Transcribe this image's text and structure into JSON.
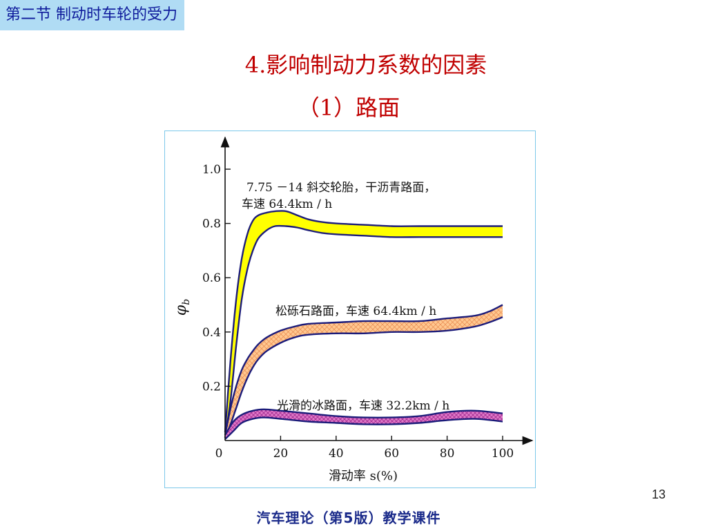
{
  "slide": {
    "section_label": "第二节  制动时车轮的受力",
    "title": "4.影响制动力系数的因素",
    "subtitle": "（1）路面",
    "page_number": "13",
    "footer": "汽车理论（第5版）教学课件"
  },
  "colors": {
    "section_tag_bg": "#b0dcf4",
    "section_tag_text": "#0e1a9b",
    "title": "#c00000",
    "band_dry_asphalt": "#ffff00",
    "band_gravel": "#ffc890",
    "band_ice": "#e07ac8",
    "band_outline": "#1c1c7a",
    "figure_border": "#7cc8ea"
  },
  "chart_data": {
    "type": "area",
    "xlabel": "滑动率 s(%)",
    "ylabel": "φb",
    "xlim": [
      0,
      100
    ],
    "ylim": [
      0,
      1.0
    ],
    "x_ticks": [
      0,
      20,
      40,
      60,
      80,
      100
    ],
    "y_ticks": [
      0.2,
      0.4,
      0.6,
      0.8,
      1.0
    ],
    "grid": false,
    "legend": "none",
    "series": [
      {
        "annotation": [
          "7.75 －14 斜交轮胎，干沥青路面，",
          "车速 64.4km / h"
        ],
        "fill": "solid",
        "x": [
          0,
          2,
          4,
          6,
          8,
          10,
          12,
          15,
          18,
          22,
          26,
          30,
          35,
          40,
          50,
          60,
          70,
          80,
          90,
          100
        ],
        "upper": [
          0.03,
          0.3,
          0.52,
          0.67,
          0.76,
          0.81,
          0.83,
          0.84,
          0.845,
          0.845,
          0.83,
          0.815,
          0.805,
          0.8,
          0.795,
          0.79,
          0.79,
          0.79,
          0.79,
          0.79
        ],
        "lower": [
          0.01,
          0.15,
          0.35,
          0.52,
          0.63,
          0.7,
          0.745,
          0.775,
          0.79,
          0.79,
          0.785,
          0.775,
          0.765,
          0.76,
          0.755,
          0.75,
          0.75,
          0.75,
          0.75,
          0.75
        ]
      },
      {
        "annotation": [
          "松砾石路面，车速 64.4km / h"
        ],
        "fill": "crosshatch",
        "x": [
          0,
          2,
          4,
          6,
          8,
          10,
          12,
          15,
          20,
          25,
          30,
          40,
          50,
          60,
          70,
          80,
          90,
          95,
          100
        ],
        "upper": [
          0.02,
          0.12,
          0.2,
          0.26,
          0.3,
          0.33,
          0.355,
          0.38,
          0.405,
          0.42,
          0.43,
          0.435,
          0.44,
          0.44,
          0.44,
          0.45,
          0.46,
          0.475,
          0.5
        ],
        "lower": [
          0.01,
          0.06,
          0.12,
          0.18,
          0.23,
          0.27,
          0.3,
          0.33,
          0.36,
          0.38,
          0.39,
          0.395,
          0.395,
          0.4,
          0.4,
          0.405,
          0.42,
          0.435,
          0.455
        ]
      },
      {
        "annotation": [
          "光滑的冰路面，车速 32.2km / h"
        ],
        "fill": "crosshatch",
        "x": [
          0,
          3,
          6,
          10,
          14,
          20,
          30,
          40,
          50,
          60,
          70,
          80,
          90,
          100
        ],
        "upper": [
          0.02,
          0.07,
          0.095,
          0.11,
          0.115,
          0.11,
          0.1,
          0.09,
          0.085,
          0.085,
          0.09,
          0.105,
          0.11,
          0.1
        ],
        "lower": [
          0.005,
          0.035,
          0.065,
          0.08,
          0.085,
          0.08,
          0.07,
          0.065,
          0.06,
          0.06,
          0.065,
          0.075,
          0.08,
          0.07
        ]
      }
    ]
  }
}
